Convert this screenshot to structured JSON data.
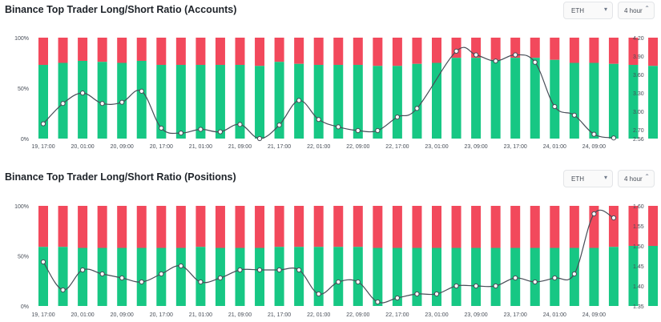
{
  "colors": {
    "long": "#17c784",
    "short": "#f2495c",
    "line": "#474d57",
    "bg": "#ffffff",
    "grid": "#eaecef"
  },
  "panels": [
    {
      "title": "Binance Top Trader Long/Short Ratio (Accounts)",
      "symbol_select": {
        "value": "ETH",
        "icon": "chevron-down-icon"
      },
      "period_select": {
        "value": "4 hour",
        "icon": "up-down-chevron-icon"
      }
    },
    {
      "title": "Binance Top Trader Long/Short Ratio (Positions)",
      "symbol_select": {
        "value": "ETH",
        "icon": "chevron-down-icon"
      },
      "period_select": {
        "value": "4 hour",
        "icon": "up-down-chevron-icon"
      }
    }
  ],
  "chart_data": [
    {
      "type": "bar",
      "title": "Binance Top Trader Long/Short Ratio (Accounts)",
      "stacked_percent": true,
      "x_tick_labels": [
        "19, 17:00",
        "20, 01:00",
        "20, 09:00",
        "20, 17:00",
        "21, 01:00",
        "21, 09:00",
        "21, 17:00",
        "22, 01:00",
        "22, 09:00",
        "22, 17:00",
        "23, 01:00",
        "23, 09:00",
        "23, 17:00",
        "24, 01:00",
        "24, 09:00"
      ],
      "left_axis_ticks": [
        "0%",
        "50%",
        "100%"
      ],
      "right_axis_ticks": [
        "2.56",
        "2.70",
        "3.00",
        "3.30",
        "3.60",
        "3.90",
        "4.20"
      ],
      "right_ylim": [
        2.56,
        4.2
      ],
      "long_percent": [
        73,
        75,
        77,
        76,
        75,
        77,
        73,
        73,
        73,
        73,
        73,
        72,
        76,
        74,
        73,
        73,
        73,
        72,
        72,
        74,
        75,
        80,
        80,
        78,
        80,
        80,
        78,
        75,
        75,
        74,
        73,
        72
      ],
      "series": [
        {
          "name": "long/short ratio",
          "values": [
            2.8,
            3.13,
            3.3,
            3.13,
            3.15,
            3.33,
            2.73,
            2.65,
            2.71,
            2.67,
            2.79,
            2.56,
            2.78,
            3.18,
            2.87,
            2.75,
            2.69,
            2.69,
            2.91,
            3.05,
            3.98,
            3.92,
            3.82,
            3.92,
            3.8,
            3.08,
            2.94,
            2.63,
            2.57
          ]
        }
      ],
      "ratio_slots": [
        0,
        1,
        2,
        3,
        4,
        5,
        6,
        7,
        8,
        9,
        10,
        11,
        12,
        13,
        14,
        15,
        16,
        17,
        18,
        19,
        21,
        22,
        23,
        24,
        25,
        26,
        27,
        28,
        29
      ],
      "grid": false
    },
    {
      "type": "bar",
      "title": "Binance Top Trader Long/Short Ratio (Positions)",
      "stacked_percent": true,
      "x_tick_labels": [
        "19, 17:00",
        "20, 01:00",
        "20, 09:00",
        "20, 17:00",
        "21, 01:00",
        "21, 09:00",
        "21, 17:00",
        "22, 01:00",
        "22, 09:00",
        "22, 17:00",
        "23, 01:00",
        "23, 09:00",
        "23, 17:00",
        "24, 01:00",
        "24, 09:00"
      ],
      "left_axis_ticks": [
        "0%",
        "50%",
        "100%"
      ],
      "right_axis_ticks": [
        "1.35",
        "1.40",
        "1.45",
        "1.50",
        "1.55",
        "1.60"
      ],
      "right_ylim": [
        1.35,
        1.6
      ],
      "long_percent": [
        59,
        59,
        58,
        58,
        58,
        58,
        58,
        58,
        59,
        58,
        58,
        58,
        59,
        59,
        59,
        59,
        59,
        58,
        58,
        58,
        58,
        58,
        58,
        58,
        58,
        58,
        58,
        58,
        58,
        59,
        60,
        60
      ],
      "series": [
        {
          "name": "long/short ratio",
          "values": [
            1.46,
            1.39,
            1.44,
            1.43,
            1.42,
            1.41,
            1.43,
            1.45,
            1.41,
            1.42,
            1.44,
            1.44,
            1.44,
            1.44,
            1.38,
            1.41,
            1.41,
            1.36,
            1.37,
            1.38,
            1.38,
            1.4,
            1.4,
            1.4,
            1.42,
            1.41,
            1.42,
            1.43,
            1.58,
            1.57
          ]
        }
      ],
      "ratio_slots": [
        0,
        1,
        2,
        3,
        4,
        5,
        6,
        7,
        8,
        9,
        10,
        11,
        12,
        13,
        14,
        15,
        16,
        17,
        18,
        19,
        20,
        21,
        22,
        23,
        24,
        25,
        26,
        27,
        28,
        29
      ],
      "grid": false
    }
  ]
}
